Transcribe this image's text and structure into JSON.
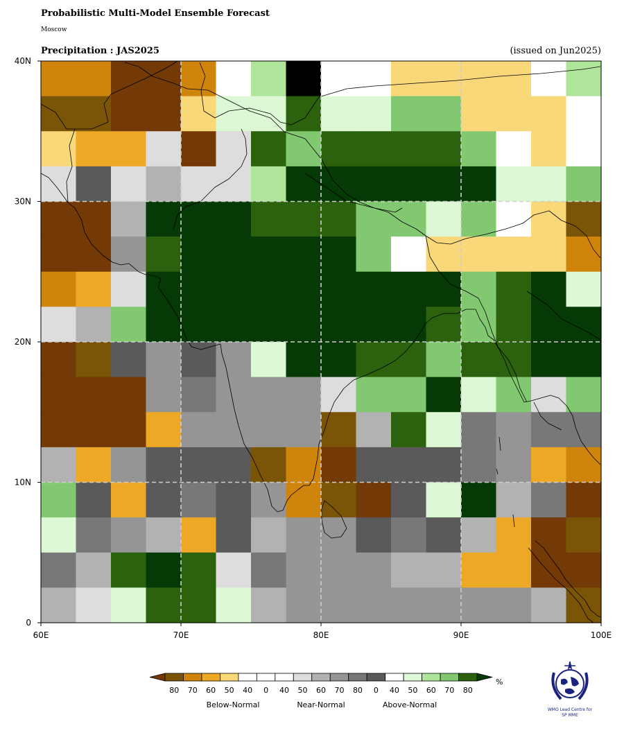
{
  "header": {
    "title": "Probabilistic Multi-Model Ensemble Forecast",
    "center": "Moscow",
    "variable": "Precipitation : JAS2025",
    "issued": "(issued on Jun2025)"
  },
  "map": {
    "lon_range": [
      60,
      100
    ],
    "lat_range": [
      0,
      40
    ],
    "cell_size_deg": 2.5,
    "x_tick_labels": [
      "60E",
      "70E",
      "80E",
      "90E",
      "100E"
    ],
    "y_tick_labels": [
      "40N",
      "30N",
      "20N",
      "10N",
      "0"
    ],
    "gridlines": "dashed every 10 degrees",
    "grid_codes": [
      "BBCCBWGJWWYYYYWG",
      "DDCCYHHKHHIIYYYW",
      "YXXNCNKIKKKKIWYW",
      "NPNONNGLLLLLLHHI",
      "CCOLLLKKKIIHIWYD",
      "CCQKLLLLLIWYYYYB",
      "BXNLLLLLLLLLIKLH",
      "NOILLLLLLLLKIKLL",
      "CDPQPQHLLKKIKKLL",
      "CCCQRQQQNIILHINI",
      "CCCXQQQQDOKHRQRR",
      "OXQPPPDBCPPPRQXB",
      "IPXPRPQBDCPHLORC",
      "HRQOXPOQQPRPOXCD",
      "ROKLKNRQQQOOXXCC",
      "ONHKKHOQQQQQQQOD"
    ],
    "colors": {
      "D": "#7b5507",
      "C": "#733907",
      "B": "#cf840c",
      "X": "#eda825",
      "Y": "#f9d87a",
      "W": "#ffffff",
      "N": "#dddddd",
      "O": "#b1b2b1",
      "Q": "#959595",
      "R": "#787878",
      "P": "#5a5a5a",
      "H": "#ddf8d4",
      "G": "#afe59a",
      "I": "#82c870",
      "K": "#2c620d",
      "L": "#053906"
    }
  },
  "legend": {
    "colors": [
      "#7b5507",
      "#cf840c",
      "#eda825",
      "#f9d87a",
      "#ffffff",
      "#ffffff",
      "#ffffff",
      "#dddddd",
      "#b1b2b1",
      "#959595",
      "#787878",
      "#5a5a5a",
      "#ffffff",
      "#ddf8d4",
      "#afe59a",
      "#82c870",
      "#2c620d"
    ],
    "tick_labels": [
      "80",
      "70",
      "60",
      "50",
      "40",
      "0",
      "40",
      "50",
      "60",
      "70",
      "80",
      "0",
      "40",
      "50",
      "60",
      "70",
      "80"
    ],
    "unit": "%",
    "group_labels": [
      "Below-Normal",
      "Near-Normal",
      "Above-Normal"
    ],
    "arrow_left_color": "#733907",
    "arrow_right_color": "#053906"
  },
  "logo": {
    "text_line1": "WMO Lead Centre for",
    "text_line2": "SP MME"
  }
}
